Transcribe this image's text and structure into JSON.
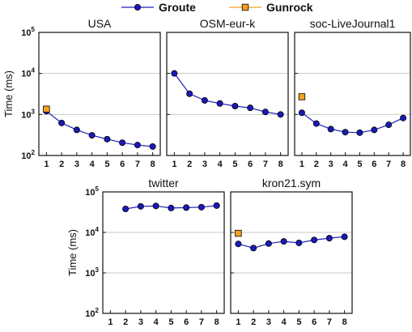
{
  "chart_data": {
    "type": "line",
    "ylabel": "Time (ms)",
    "y_scale": "log",
    "ylim": [
      100,
      100000
    ],
    "y_ticks": [
      {
        "base": "10",
        "exp": "2"
      },
      {
        "base": "10",
        "exp": "3"
      },
      {
        "base": "10",
        "exp": "4"
      },
      {
        "base": "10",
        "exp": "5"
      }
    ],
    "x_ticks": [
      "1",
      "2",
      "3",
      "4",
      "5",
      "6",
      "7",
      "8"
    ],
    "grid": "horizontal",
    "legend_position": "top-center",
    "colors": {
      "groute": "#2020c0",
      "groute_marker": "#1a1ab8",
      "gunrock": "#f5a020"
    },
    "legend": [
      {
        "name": "Groute",
        "marker": "circle"
      },
      {
        "name": "Gunrock",
        "marker": "square"
      }
    ],
    "panels": [
      {
        "title": "USA",
        "groute": {
          "x": [
            1,
            2,
            3,
            4,
            5,
            6,
            7,
            8
          ],
          "y": [
            1200,
            620,
            420,
            310,
            250,
            205,
            180,
            165
          ]
        },
        "gunrock": {
          "x": [
            1
          ],
          "y": [
            1350
          ]
        }
      },
      {
        "title": "OSM-eur-k",
        "groute": {
          "x": [
            1,
            2,
            3,
            4,
            5,
            6,
            7,
            8
          ],
          "y": [
            10000,
            3200,
            2200,
            1850,
            1600,
            1450,
            1150,
            1000
          ]
        },
        "gunrock": {
          "x": [],
          "y": []
        }
      },
      {
        "title": "soc-LiveJournal1",
        "groute": {
          "x": [
            1,
            2,
            3,
            4,
            5,
            6,
            7,
            8
          ],
          "y": [
            1100,
            600,
            440,
            370,
            360,
            420,
            560,
            820
          ]
        },
        "gunrock": {
          "x": [
            1
          ],
          "y": [
            2700
          ]
        }
      },
      {
        "title": "twitter",
        "groute": {
          "x": [
            2,
            3,
            4,
            5,
            6,
            7,
            8
          ],
          "y": [
            38000,
            44000,
            45000,
            40000,
            41000,
            42000,
            46000
          ]
        },
        "gunrock": {
          "x": [],
          "y": []
        }
      },
      {
        "title": "kron21.sym",
        "groute": {
          "x": [
            1,
            2,
            3,
            4,
            5,
            6,
            7,
            8
          ],
          "y": [
            5200,
            4100,
            5300,
            6000,
            5500,
            6500,
            7200,
            7800
          ]
        },
        "gunrock": {
          "x": [
            1
          ],
          "y": [
            9500
          ]
        }
      }
    ]
  }
}
